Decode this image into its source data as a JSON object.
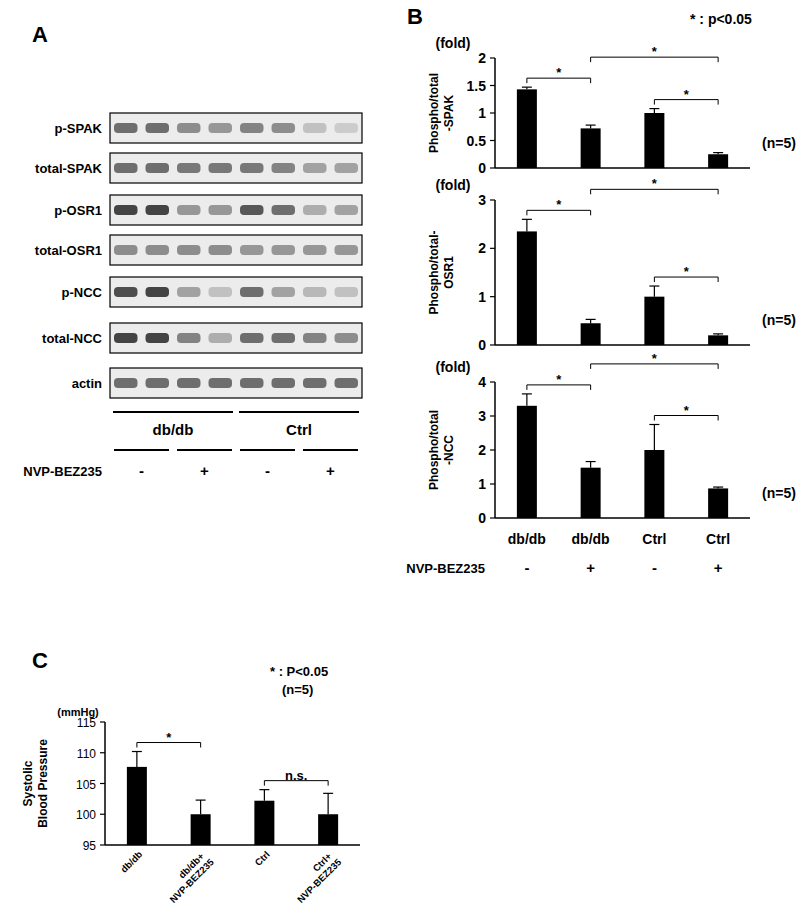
{
  "panel_a": {
    "panel": "A",
    "rows": [
      {
        "label": "p-SPAK",
        "intensity": [
          0.6,
          0.6,
          0.45,
          0.4,
          0.5,
          0.45,
          0.2,
          0.15
        ]
      },
      {
        "label": "total-SPAK",
        "intensity": [
          0.6,
          0.6,
          0.55,
          0.55,
          0.55,
          0.5,
          0.35,
          0.35
        ]
      },
      {
        "label": "p-OSR1",
        "intensity": [
          0.8,
          0.8,
          0.4,
          0.4,
          0.7,
          0.6,
          0.3,
          0.35
        ]
      },
      {
        "label": "total-OSR1",
        "intensity": [
          0.45,
          0.45,
          0.45,
          0.45,
          0.4,
          0.4,
          0.4,
          0.4
        ]
      },
      {
        "label": "p-NCC",
        "intensity": [
          0.75,
          0.8,
          0.35,
          0.2,
          0.6,
          0.35,
          0.25,
          0.2
        ]
      },
      {
        "label": "total-NCC",
        "intensity": [
          0.8,
          0.8,
          0.5,
          0.3,
          0.6,
          0.6,
          0.5,
          0.45
        ]
      },
      {
        "label": "actin",
        "intensity": [
          0.6,
          0.6,
          0.6,
          0.6,
          0.6,
          0.6,
          0.6,
          0.6
        ]
      }
    ],
    "groups": [
      "db/db",
      "Ctrl"
    ],
    "treatment_label": "NVP-BEZ235",
    "treatment": [
      "-",
      "+",
      "-",
      "+"
    ]
  },
  "chart_data": [
    {
      "type": "bar",
      "panel": "B",
      "p_label": "* : p<0.05",
      "categories": [
        null,
        null,
        null,
        null
      ],
      "values": [
        1.43,
        0.72,
        1.0,
        0.25
      ],
      "errors": [
        0.04,
        0.06,
        0.08,
        0.03
      ],
      "color": "#000000",
      "ylim": [
        0,
        2
      ],
      "yticks": [
        0,
        0.5,
        1,
        1.5,
        2
      ],
      "y_label": [
        "Phospho/total",
        "-SPAK"
      ],
      "y_unit": "(fold)",
      "n_label": "(n=5)",
      "annotations": [
        {
          "text": "*",
          "from": 0,
          "to": 1
        },
        {
          "text": "*",
          "from": 2,
          "to": 3
        },
        {
          "text": "*",
          "from": 1,
          "to": 3
        }
      ]
    },
    {
      "type": "bar",
      "categories": [
        null,
        null,
        null,
        null
      ],
      "values": [
        2.35,
        0.45,
        1.0,
        0.2
      ],
      "errors": [
        0.25,
        0.08,
        0.22,
        0.03
      ],
      "color": "#000000",
      "ylim": [
        0,
        3
      ],
      "yticks": [
        0,
        1,
        2,
        3
      ],
      "y_label": [
        "Phospho/total-",
        "OSR1"
      ],
      "y_unit": "(fold)",
      "n_label": "(n=5)",
      "annotations": [
        {
          "text": "*",
          "from": 0,
          "to": 1
        },
        {
          "text": "*",
          "from": 2,
          "to": 3
        },
        {
          "text": "*",
          "from": 1,
          "to": 3
        }
      ]
    },
    {
      "type": "bar",
      "categories": [
        "db/db",
        "db/db",
        "Ctrl",
        "Ctrl"
      ],
      "values": [
        3.3,
        1.48,
        2.0,
        0.87
      ],
      "errors": [
        0.35,
        0.18,
        0.75,
        0.04
      ],
      "color": "#000000",
      "ylim": [
        0,
        4
      ],
      "yticks": [
        0,
        1,
        2,
        3,
        4
      ],
      "y_label": [
        "Phospho/total",
        "-NCC"
      ],
      "y_unit": "(fold)",
      "n_label": "(n=5)",
      "treatment_label": "NVP-BEZ235",
      "treatment": [
        "-",
        "+",
        "-",
        "+"
      ],
      "annotations": [
        {
          "text": "*",
          "from": 0,
          "to": 1
        },
        {
          "text": "*",
          "from": 2,
          "to": 3
        },
        {
          "text": "*",
          "from": 1,
          "to": 3
        }
      ]
    },
    {
      "type": "bar",
      "panel": "C",
      "p_label": "* : P<0.05",
      "n_label": "(n=5)",
      "categories": [
        "db/db",
        "db/db+ NVP-BEZ235",
        "Ctrl",
        "Ctrl+ NVP-BEZ235"
      ],
      "values": [
        107.7,
        100.0,
        102.2,
        100.0
      ],
      "errors": [
        2.5,
        2.3,
        1.8,
        3.4
      ],
      "color": "#000000",
      "ylim": [
        95,
        115
      ],
      "yticks": [
        95,
        100,
        105,
        110,
        115
      ],
      "y_label": [
        "Systolic",
        "Blood Pressure"
      ],
      "y_unit": "(mmHg)",
      "annotations": [
        {
          "text": "*",
          "from": 0,
          "to": 1
        },
        {
          "text": "n.s.",
          "from": 2,
          "to": 3
        }
      ]
    }
  ]
}
